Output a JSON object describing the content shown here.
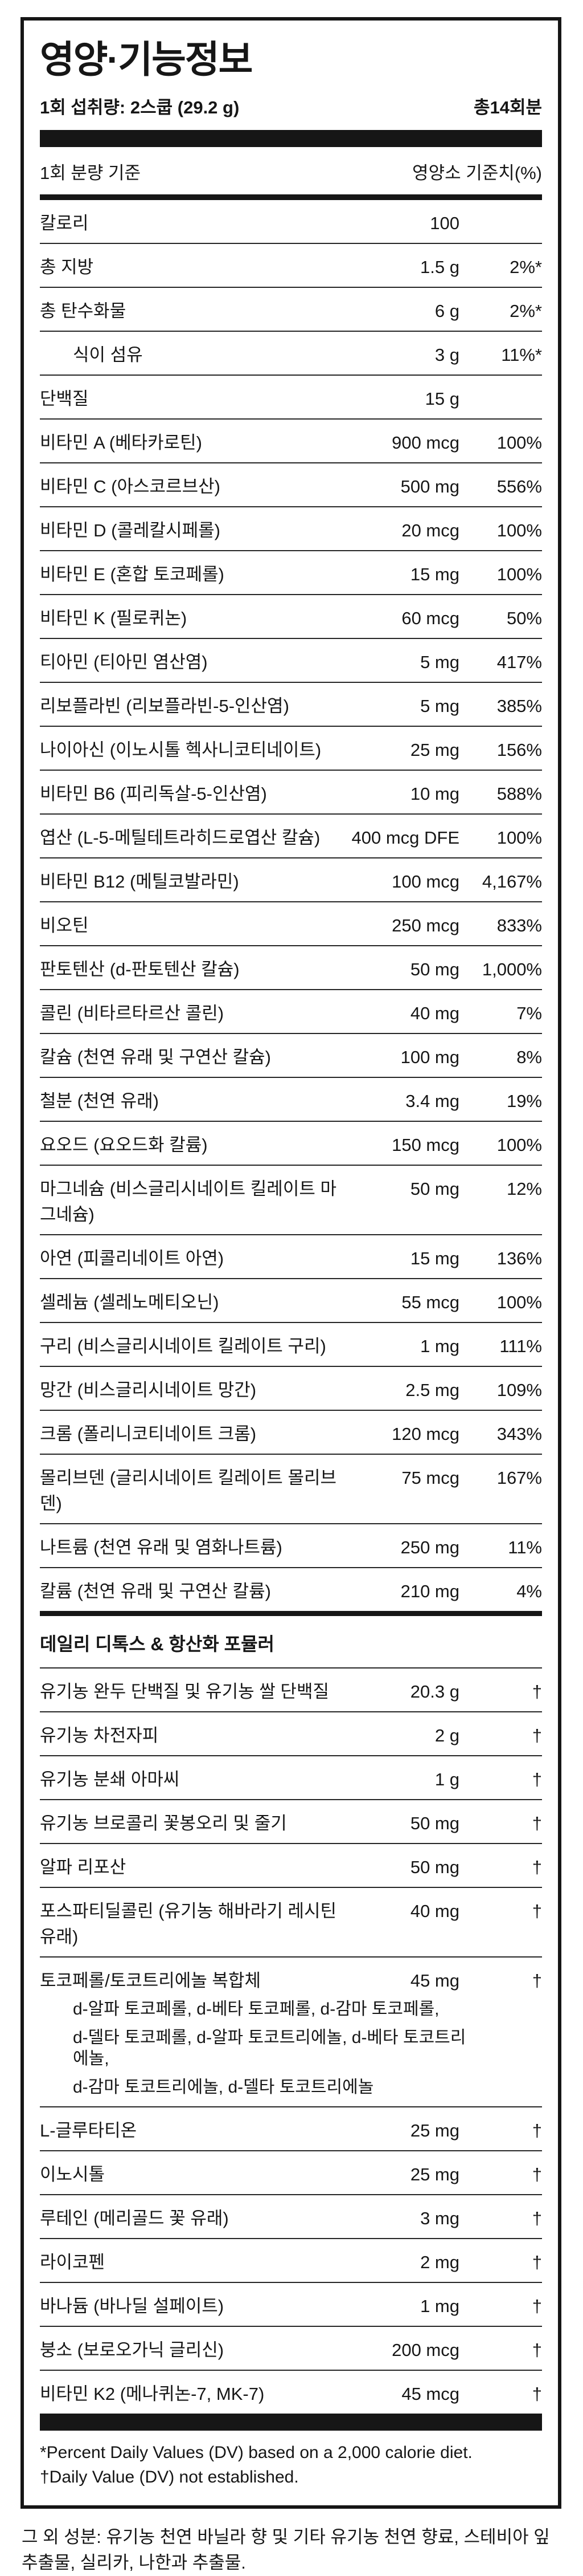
{
  "colors": {
    "ink": "#161616",
    "divider": "#262626",
    "background": "#ffffff"
  },
  "header": {
    "title": "영양·기능정보",
    "serving_label": "1회 섭취량: 2스쿱 (29.2 g)",
    "servings_total": "총14회분",
    "col_left": "1회 분량 기준",
    "col_right": "영양소 기준치(%)"
  },
  "nutrients": [
    {
      "name": "칼로리",
      "amount": "100",
      "dv": ""
    },
    {
      "name": "총 지방",
      "amount": "1.5 g",
      "dv": "2%*"
    },
    {
      "name": "총 탄수화물",
      "amount": "6 g",
      "dv": "2%*"
    },
    {
      "name": "식이 섬유",
      "amount": "3 g",
      "dv": "11%*",
      "indent": true
    },
    {
      "name": "단백질",
      "amount": "15 g",
      "dv": ""
    },
    {
      "name": "비타민 A (베타카로틴)",
      "amount": "900 mcg",
      "dv": "100%"
    },
    {
      "name": "비타민 C (아스코르브산)",
      "amount": "500 mg",
      "dv": "556%"
    },
    {
      "name": "비타민 D (콜레칼시페롤)",
      "amount": "20 mcg",
      "dv": "100%"
    },
    {
      "name": "비타민 E (혼합 토코페롤)",
      "amount": "15 mg",
      "dv": "100%"
    },
    {
      "name": "비타민 K (필로퀴논)",
      "amount": "60 mcg",
      "dv": "50%"
    },
    {
      "name": "티아민 (티아민 염산염)",
      "amount": "5 mg",
      "dv": "417%"
    },
    {
      "name": "리보플라빈 (리보플라빈-5-인산염)",
      "amount": "5 mg",
      "dv": "385%"
    },
    {
      "name": "나이아신 (이노시톨 헥사니코티네이트)",
      "amount": "25 mg",
      "dv": "156%"
    },
    {
      "name": "비타민 B6 (피리독살-5-인산염)",
      "amount": "10 mg",
      "dv": "588%"
    },
    {
      "name": "엽산 (L-5-메틸테트라히드로엽산 칼슘)",
      "amount": "400 mcg DFE",
      "dv": "100%"
    },
    {
      "name": "비타민 B12 (메틸코발라민)",
      "amount": "100 mcg",
      "dv": "4,167%"
    },
    {
      "name": "비오틴",
      "amount": "250 mcg",
      "dv": "833%"
    },
    {
      "name": "판토텐산 (d-판토텐산 칼슘)",
      "amount": "50 mg",
      "dv": "1,000%"
    },
    {
      "name": "콜린 (비타르타르산 콜린)",
      "amount": "40 mg",
      "dv": "7%"
    },
    {
      "name": "칼슘 (천연 유래 및 구연산 칼슘)",
      "amount": "100 mg",
      "dv": "8%"
    },
    {
      "name": "철분 (천연 유래)",
      "amount": "3.4 mg",
      "dv": "19%"
    },
    {
      "name": "요오드 (요오드화 칼륨)",
      "amount": "150 mcg",
      "dv": "100%"
    },
    {
      "name": "마그네슘 (비스글리시네이트 킬레이트 마그네슘)",
      "amount": "50 mg",
      "dv": "12%"
    },
    {
      "name": "아연 (피콜리네이트 아연)",
      "amount": "15 mg",
      "dv": "136%"
    },
    {
      "name": "셀레늄 (셀레노메티오닌)",
      "amount": "55 mcg",
      "dv": "100%"
    },
    {
      "name": "구리 (비스글리시네이트 킬레이트 구리)",
      "amount": "1 mg",
      "dv": "111%"
    },
    {
      "name": "망간 (비스글리시네이트 망간)",
      "amount": "2.5 mg",
      "dv": "109%"
    },
    {
      "name": "크롬 (폴리니코티네이트 크롬)",
      "amount": "120 mcg",
      "dv": "343%"
    },
    {
      "name": "몰리브덴 (글리시네이트 킬레이트 몰리브덴)",
      "amount": "75 mcg",
      "dv": "167%"
    },
    {
      "name": "나트륨 (천연 유래 및 염화나트륨)",
      "amount": "250 mg",
      "dv": "11%"
    },
    {
      "name": "칼륨 (천연 유래 및 구연산 칼륨)",
      "amount": "210 mg",
      "dv": "4%"
    }
  ],
  "section2": {
    "title": "데일리 디톡스 & 항산화 포뮬러",
    "items": [
      {
        "name": "유기농 완두 단백질 및 유기농 쌀 단백질",
        "amount": "20.3 g",
        "dv": "†"
      },
      {
        "name": "유기농 차전자피",
        "amount": "2 g",
        "dv": "†"
      },
      {
        "name": "유기농 분쇄 아마씨",
        "amount": "1 g",
        "dv": "†"
      },
      {
        "name": "유기농 브로콜리 꽃봉오리 및 줄기",
        "amount": "50 mg",
        "dv": "†"
      },
      {
        "name": "알파 리포산",
        "amount": "50 mg",
        "dv": "†"
      },
      {
        "name": "포스파티딜콜린 (유기농 해바라기 레시틴 유래)",
        "amount": "40 mg",
        "dv": "†"
      },
      {
        "name": "토코페롤/토코트리에놀 복합체",
        "amount": "45 mg",
        "dv": "†",
        "sublines": [
          "d-알파 토코페롤, d-베타 토코페롤, d-감마 토코페롤,",
          "d-델타 토코페롤, d-알파 토코트리에놀, d-베타 토코트리에놀,",
          "d-감마 토코트리에놀, d-델타 토코트리에놀"
        ]
      },
      {
        "name": "L-글루타티온",
        "amount": "25 mg",
        "dv": "†"
      },
      {
        "name": "이노시톨",
        "amount": "25 mg",
        "dv": "†"
      },
      {
        "name": "루테인 (메리골드 꽃 유래)",
        "amount": "3 mg",
        "dv": "†"
      },
      {
        "name": "라이코펜",
        "amount": "2 mg",
        "dv": "†"
      },
      {
        "name": "바나듐 (바나딜 설페이트)",
        "amount": "1 mg",
        "dv": "†"
      },
      {
        "name": "붕소 (보로오가닉 글리신)",
        "amount": "200 mcg",
        "dv": "†"
      },
      {
        "name": "비타민 K2 (메나퀴논-7, MK-7)",
        "amount": "45 mcg",
        "dv": "†"
      }
    ]
  },
  "footnotes": [
    "*Percent Daily Values (DV) based on a 2,000 calorie diet.",
    "†Daily Value (DV) not established."
  ],
  "other_ingredients": "그 외 성분: 유기농 천연 바닐라 향 및 기타 유기농 천연 향료, 스테비아 잎 추출물, 실리카, 나한과 추출물."
}
